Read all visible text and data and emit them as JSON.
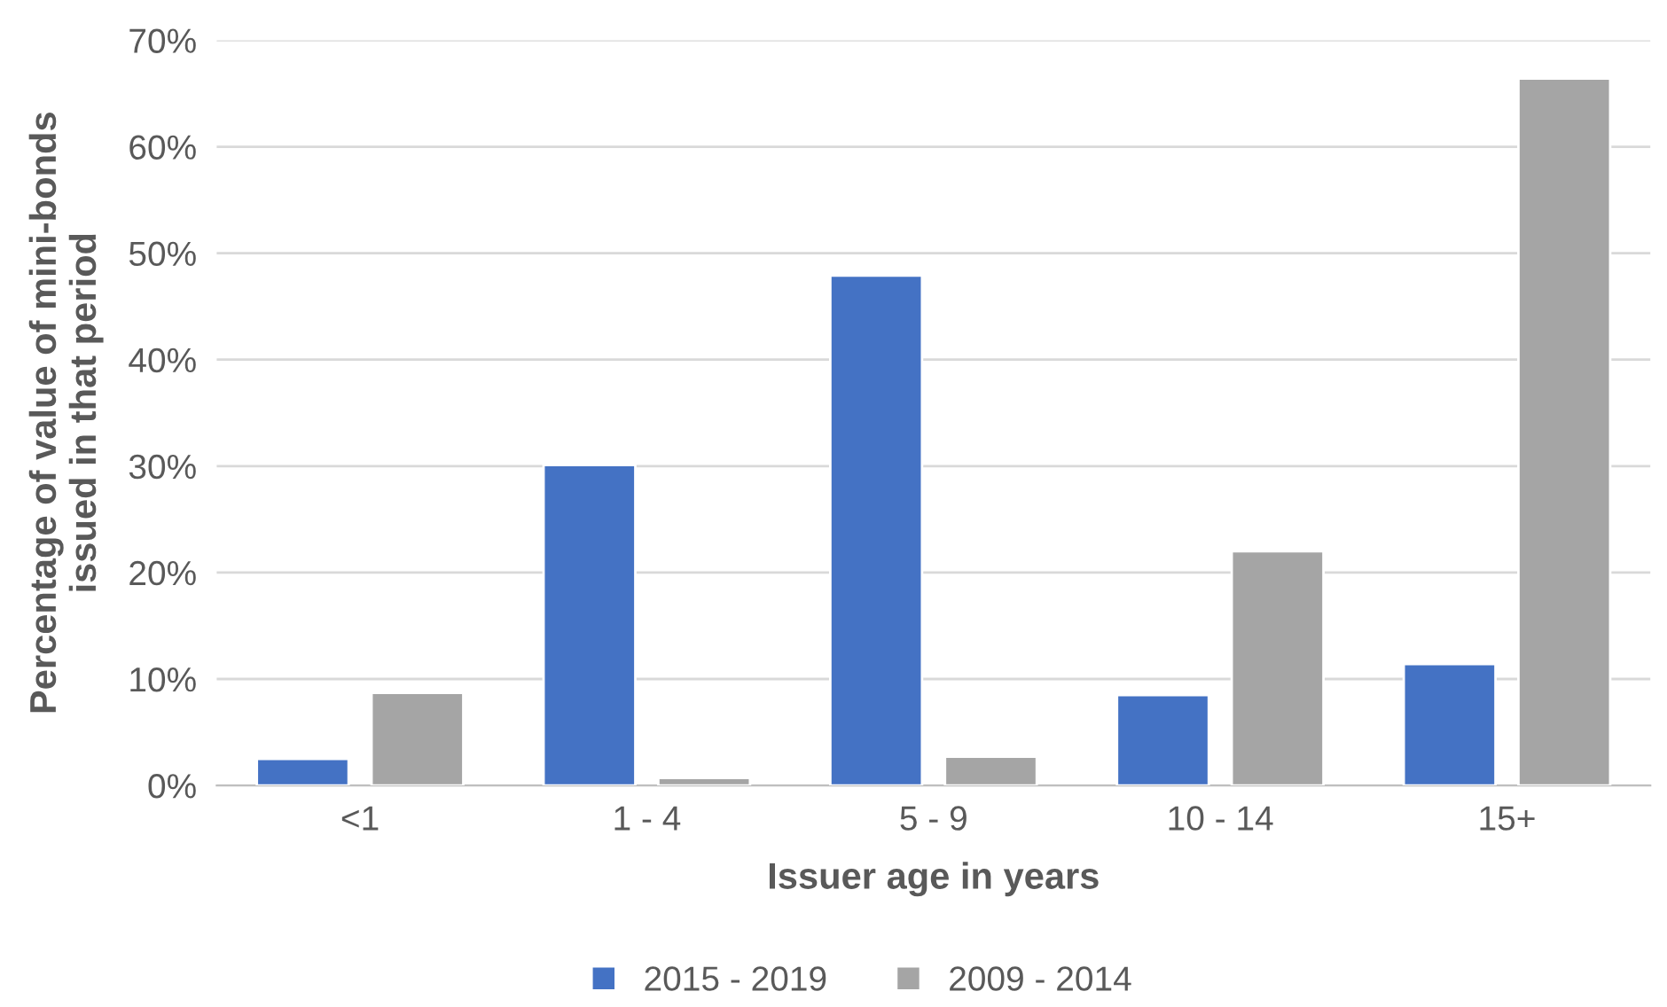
{
  "chart_data": {
    "type": "bar",
    "xlabel": "Issuer age in years",
    "ylabel": "Percentage of value of mini-bonds\nissued in that period",
    "categories": [
      "<1",
      "1 - 4",
      "5 - 9",
      "10 - 14",
      "15+"
    ],
    "series": [
      {
        "name": "2015 - 2019",
        "color": "#4472c4",
        "values": [
          2.5,
          30.1,
          47.9,
          8.5,
          11.4
        ]
      },
      {
        "name": "2009 - 2014",
        "color": "#a5a5a5",
        "values": [
          8.7,
          0.7,
          2.7,
          22.0,
          66.4
        ]
      }
    ],
    "ylim": [
      0,
      70
    ],
    "yticks": [
      {
        "value": 0,
        "label": "0%"
      },
      {
        "value": 10,
        "label": "10%"
      },
      {
        "value": 20,
        "label": "20%"
      },
      {
        "value": 30,
        "label": "30%"
      },
      {
        "value": 40,
        "label": "40%"
      },
      {
        "value": 50,
        "label": "50%"
      },
      {
        "value": 60,
        "label": "60%"
      },
      {
        "value": 70,
        "label": "70%"
      }
    ],
    "grid": "y",
    "legend": "bottom"
  }
}
